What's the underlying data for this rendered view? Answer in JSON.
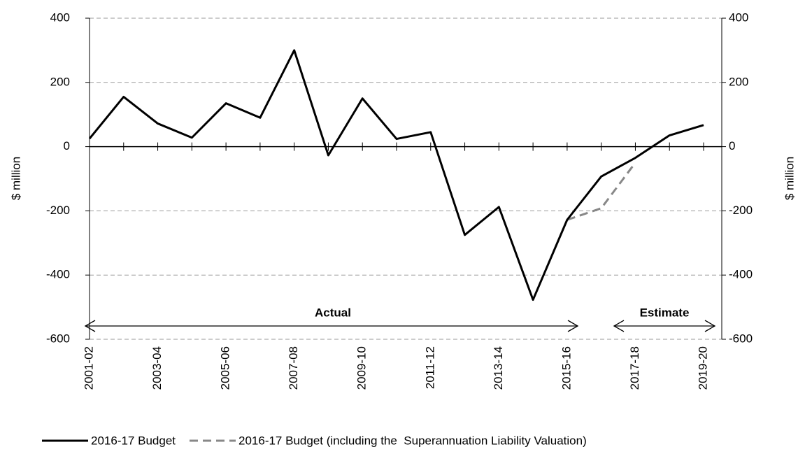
{
  "chart_data": {
    "type": "line",
    "y_label": "$ million",
    "y2_label": "$ million",
    "categories": [
      "2001-02",
      null,
      "2003-04",
      null,
      "2005-06",
      null,
      "2007-08",
      null,
      "2009-10",
      null,
      "2011-12",
      null,
      "2013-14",
      null,
      "2015-16",
      null,
      "2017-18",
      null,
      "2019-20"
    ],
    "series": [
      {
        "name": "2016-17 Budget",
        "color": "#000000",
        "dash": false,
        "values": [
          25,
          155,
          72,
          28,
          135,
          90,
          300,
          -27,
          150,
          24,
          45,
          -275,
          -188,
          -477,
          -228,
          -93,
          -35,
          35,
          67
        ]
      },
      {
        "name": "2016-17 Budget (including the  Superannuation Liability Valuation)",
        "color": "#888888",
        "dash": true,
        "values": [
          null,
          null,
          null,
          null,
          null,
          null,
          null,
          null,
          null,
          null,
          null,
          null,
          null,
          null,
          -228,
          -192,
          -50,
          null,
          null
        ]
      }
    ],
    "ylim": [
      -600,
      400
    ],
    "yticks": [
      -600,
      -400,
      -200,
      0,
      200,
      400
    ],
    "y2lim": [
      -600,
      400
    ],
    "y2ticks": [
      -600,
      -400,
      -200,
      0,
      200,
      400
    ],
    "grid": true,
    "annotations": [
      "Actual",
      "Estimate"
    ]
  }
}
